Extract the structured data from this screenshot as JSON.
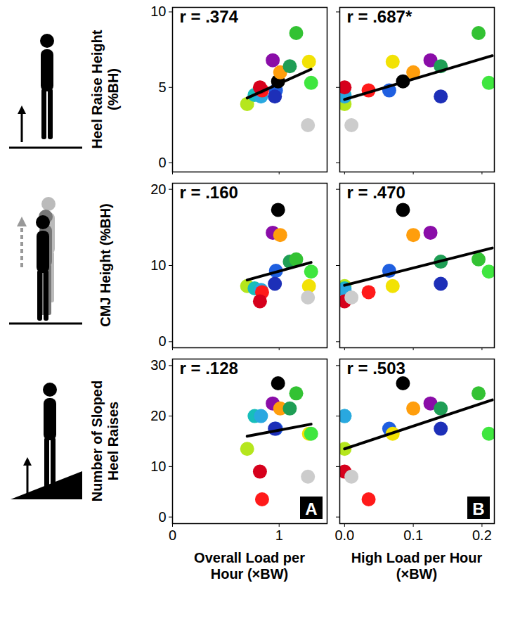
{
  "panel_labels": [
    "A",
    "B"
  ],
  "chart_data": [
    {
      "type": "scatter",
      "ylabel": "Heel Raise Height (%BH)",
      "xlim": [
        0,
        1.45
      ],
      "xticks": [
        0,
        1
      ],
      "ylim": [
        -0.6,
        10.3
      ],
      "yticks": [
        0,
        5,
        10
      ],
      "tick_labels": "y",
      "x": [
        0.7,
        0.77,
        0.83,
        0.84,
        0.82,
        0.97,
        0.96,
        0.99,
        0.94,
        1.01,
        1.1,
        1.16,
        1.28,
        1.3,
        1.27
      ],
      "values": [
        3.9,
        4.5,
        4.4,
        4.8,
        5.0,
        4.8,
        4.4,
        5.4,
        6.8,
        6.0,
        6.4,
        8.6,
        6.7,
        5.3,
        2.5
      ],
      "colors": [
        "#b5e61d",
        "#17bebb",
        "#29a8e0",
        "#ff1a1a",
        "#d6001c",
        "#1f5fe0",
        "#1d2fb8",
        "#000000",
        "#8a0da8",
        "#ff9e0d",
        "#1f9e55",
        "#33c233",
        "#f2e205",
        "#3fe63f",
        "#cccccc"
      ],
      "fit_line": {
        "x": [
          0.7,
          1.3
        ],
        "values": [
          4.3,
          6.2
        ]
      },
      "annotations": [
        "r = .374"
      ]
    },
    {
      "type": "scatter",
      "xlim": [
        -0.007,
        0.218
      ],
      "xticks": [
        {
          "value": 0,
          "label": "0.0"
        },
        {
          "value": 0.1,
          "label": "0.1"
        },
        {
          "value": 0.2,
          "label": "0.2"
        }
      ],
      "ylim": [
        -0.6,
        10.3
      ],
      "yticks": [
        0,
        5,
        10
      ],
      "tick_labels": false,
      "x": [
        0.0,
        0.0,
        0.0,
        0.035,
        0.0,
        0.065,
        0.14,
        0.085,
        0.125,
        0.1,
        0.14,
        0.195,
        0.07,
        0.21,
        0.01
      ],
      "values": [
        3.9,
        4.5,
        4.4,
        4.8,
        5.0,
        4.8,
        4.4,
        5.4,
        6.8,
        6.0,
        6.4,
        8.6,
        6.7,
        5.3,
        2.5
      ],
      "colors": [
        "#b5e61d",
        "#17bebb",
        "#29a8e0",
        "#ff1a1a",
        "#d6001c",
        "#1f5fe0",
        "#1d2fb8",
        "#000000",
        "#8a0da8",
        "#ff9e0d",
        "#1f9e55",
        "#33c233",
        "#f2e205",
        "#3fe63f",
        "#cccccc"
      ],
      "fit_line": {
        "x": [
          0,
          0.215
        ],
        "values": [
          4.2,
          7.1
        ]
      },
      "annotations": [
        "r = .687*"
      ]
    },
    {
      "type": "scatter",
      "ylabel": "CMJ Height (%BH)",
      "xlim": [
        0,
        1.45
      ],
      "xticks": [
        0,
        1
      ],
      "ylim": [
        -0.8,
        20.8
      ],
      "yticks": [
        0,
        10,
        20
      ],
      "tick_labels": "y",
      "x": [
        0.7,
        0.77,
        0.83,
        0.84,
        0.82,
        0.97,
        0.96,
        0.99,
        0.94,
        1.01,
        1.1,
        1.16,
        1.28,
        1.3,
        1.27
      ],
      "values": [
        7.3,
        7.0,
        6.8,
        6.5,
        5.3,
        9.3,
        7.6,
        17.3,
        14.3,
        14.0,
        10.5,
        10.8,
        7.3,
        9.2,
        5.8
      ],
      "colors": [
        "#b5e61d",
        "#17bebb",
        "#29a8e0",
        "#ff1a1a",
        "#d6001c",
        "#1f5fe0",
        "#1d2fb8",
        "#000000",
        "#8a0da8",
        "#ff9e0d",
        "#1f9e55",
        "#33c233",
        "#f2e205",
        "#3fe63f",
        "#cccccc"
      ],
      "fit_line": {
        "x": [
          0.7,
          1.3
        ],
        "values": [
          8.1,
          10.4
        ]
      },
      "annotations": [
        "r = .160"
      ]
    },
    {
      "type": "scatter",
      "xlim": [
        -0.007,
        0.218
      ],
      "xticks": [
        {
          "value": 0,
          "label": "0.0"
        },
        {
          "value": 0.1,
          "label": "0.1"
        },
        {
          "value": 0.2,
          "label": "0.2"
        }
      ],
      "ylim": [
        -0.8,
        20.8
      ],
      "yticks": [
        0,
        10,
        20
      ],
      "tick_labels": false,
      "x": [
        0.0,
        0.0,
        0.0,
        0.035,
        0.0,
        0.065,
        0.14,
        0.085,
        0.125,
        0.1,
        0.14,
        0.195,
        0.07,
        0.21,
        0.01
      ],
      "values": [
        7.3,
        7.0,
        6.8,
        6.5,
        5.3,
        9.3,
        7.6,
        17.3,
        14.3,
        14.0,
        10.5,
        10.8,
        7.3,
        9.2,
        5.8
      ],
      "colors": [
        "#b5e61d",
        "#17bebb",
        "#29a8e0",
        "#ff1a1a",
        "#d6001c",
        "#1f5fe0",
        "#1d2fb8",
        "#000000",
        "#8a0da8",
        "#ff9e0d",
        "#1f9e55",
        "#33c233",
        "#f2e205",
        "#3fe63f",
        "#cccccc"
      ],
      "fit_line": {
        "x": [
          0,
          0.215
        ],
        "values": [
          7.4,
          12.3
        ]
      },
      "annotations": [
        "r = .470"
      ]
    },
    {
      "type": "scatter",
      "ylabel": "Number of Sloped Heel Raises",
      "xlabel": "Overall Load per Hour (×BW)",
      "xlim": [
        0,
        1.45
      ],
      "xticks": [
        0,
        1
      ],
      "ylim": [
        -1.3,
        31.3
      ],
      "yticks": [
        0,
        10,
        20,
        30
      ],
      "x": [
        0.7,
        0.77,
        0.83,
        0.84,
        0.82,
        0.97,
        0.96,
        0.99,
        0.94,
        1.01,
        1.1,
        1.16,
        1.28,
        1.3,
        1.27
      ],
      "values": [
        13.5,
        20,
        20,
        3.5,
        9,
        17.5,
        17.5,
        26.5,
        22.5,
        21.5,
        21.5,
        24.5,
        16.5,
        16.5,
        8
      ],
      "colors": [
        "#b5e61d",
        "#17bebb",
        "#29a8e0",
        "#ff1a1a",
        "#d6001c",
        "#1f5fe0",
        "#1d2fb8",
        "#000000",
        "#8a0da8",
        "#ff9e0d",
        "#1f9e55",
        "#33c233",
        "#f2e205",
        "#3fe63f",
        "#cccccc"
      ],
      "fit_line": {
        "x": [
          0.7,
          1.3
        ],
        "values": [
          16.0,
          18.4
        ]
      },
      "annotations": [
        "r = .128"
      ]
    },
    {
      "type": "scatter",
      "xlabel": "High Load per Hour (×BW)",
      "xlim": [
        -0.007,
        0.218
      ],
      "xticks": [
        {
          "value": 0,
          "label": "0.0"
        },
        {
          "value": 0.1,
          "label": "0.1"
        },
        {
          "value": 0.2,
          "label": "0.2"
        }
      ],
      "ylim": [
        -1.3,
        31.3
      ],
      "yticks": [
        0,
        10,
        20,
        30
      ],
      "tick_labels": "x",
      "x": [
        0.0,
        0.0,
        0.0,
        0.035,
        0.0,
        0.065,
        0.14,
        0.085,
        0.125,
        0.1,
        0.14,
        0.195,
        0.07,
        0.21,
        0.01
      ],
      "values": [
        13.5,
        20,
        20,
        3.5,
        9,
        17.5,
        17.5,
        26.5,
        22.5,
        21.5,
        21.5,
        24.5,
        16.5,
        16.5,
        8
      ],
      "colors": [
        "#b5e61d",
        "#17bebb",
        "#29a8e0",
        "#ff1a1a",
        "#d6001c",
        "#1f5fe0",
        "#1d2fb8",
        "#000000",
        "#8a0da8",
        "#ff9e0d",
        "#1f9e55",
        "#33c233",
        "#f2e205",
        "#3fe63f",
        "#cccccc"
      ],
      "fit_line": {
        "x": [
          0,
          0.215
        ],
        "values": [
          13.5,
          23.2
        ]
      },
      "annotations": [
        "r = .503"
      ]
    }
  ]
}
